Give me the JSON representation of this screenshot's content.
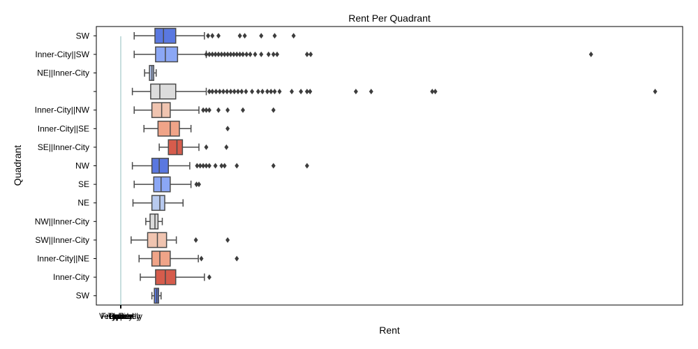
{
  "chart_data": {
    "type": "box",
    "orientation": "horizontal",
    "title": "Rent Per Quadrant",
    "xlabel": "Rent",
    "ylabel": "Quadrant",
    "grid": false,
    "legend": "none",
    "xlim": [
      -400,
      9200
    ],
    "x_tick_positions": [
      0
    ],
    "x_tick_labels_overlapping": [
      "Lower",
      "Typical",
      "Upper",
      "Frequently",
      "Rarely",
      "Very Rarely",
      "Outlier"
    ],
    "x_tick_label_note": "several words drawn on top of one another",
    "categories": [
      "SW",
      "Inner-City||SW",
      "NE||Inner-City",
      "",
      "Inner-City||NW",
      "Inner-City||SE",
      "SE||Inner-City",
      "NW",
      "SE",
      "NE",
      "NW||Inner-City",
      "SW||Inner-City",
      "Inner-City||NE",
      "Inner-City",
      "SW"
    ],
    "series": [
      {
        "whisker_low": 220,
        "q1": 560,
        "median": 700,
        "q3": 900,
        "whisker_high": 1370,
        "fliers": [
          1430,
          1500,
          1600,
          1950,
          2030,
          2300,
          2520,
          2830
        ],
        "color": "#5a78e0"
      },
      {
        "whisker_low": 220,
        "q1": 570,
        "median": 730,
        "q3": 930,
        "whisker_high": 1400,
        "fliers": [
          1400,
          1450,
          1500,
          1550,
          1600,
          1650,
          1700,
          1750,
          1800,
          1850,
          1900,
          1950,
          2000,
          2060,
          2120,
          2200,
          2300,
          2420,
          2500,
          2560,
          3050,
          3110,
          7700
        ],
        "color": "#8ba7f5"
      },
      {
        "whisker_low": 390,
        "q1": 470,
        "median": 510,
        "q3": 540,
        "whisker_high": 580,
        "fliers": [],
        "color": "#b2c6f0"
      },
      {
        "whisker_low": 190,
        "q1": 490,
        "median": 640,
        "q3": 900,
        "whisker_high": 1400,
        "fliers": [
          1450,
          1500,
          1560,
          1620,
          1680,
          1740,
          1800,
          1860,
          1920,
          1980,
          2050,
          2150,
          2250,
          2320,
          2400,
          2460,
          2520,
          2600,
          2800,
          2950,
          3050,
          3100,
          3850,
          4100,
          5100,
          5150,
          8750
        ],
        "color": "#dcdcdc"
      },
      {
        "whisker_low": 220,
        "q1": 510,
        "median": 670,
        "q3": 810,
        "whisker_high": 1280,
        "fliers": [
          1350,
          1400,
          1450,
          1600,
          1750,
          2000,
          2500
        ],
        "color": "#f0c4b0"
      },
      {
        "whisker_low": 380,
        "q1": 610,
        "median": 810,
        "q3": 960,
        "whisker_high": 1150,
        "fliers": [
          1750
        ],
        "color": "#f0a488"
      },
      {
        "whisker_low": 630,
        "q1": 780,
        "median": 920,
        "q3": 1010,
        "whisker_high": 1280,
        "fliers": [
          1400,
          1730
        ],
        "color": "#d65c4c"
      },
      {
        "whisker_low": 190,
        "q1": 510,
        "median": 630,
        "q3": 780,
        "whisker_high": 1130,
        "fliers": [
          1250,
          1300,
          1350,
          1400,
          1450,
          1550,
          1650,
          1700,
          1900,
          2500,
          3050
        ],
        "color": "#5a78e0"
      },
      {
        "whisker_low": 220,
        "q1": 540,
        "median": 660,
        "q3": 810,
        "whisker_high": 1150,
        "fliers": [
          1240,
          1280
        ],
        "color": "#8ba7f5"
      },
      {
        "whisker_low": 200,
        "q1": 510,
        "median": 640,
        "q3": 720,
        "whisker_high": 1020,
        "fliers": [],
        "color": "#b8caef"
      },
      {
        "whisker_low": 410,
        "q1": 480,
        "median": 560,
        "q3": 610,
        "whisker_high": 680,
        "fliers": [],
        "color": "#dcdcdc"
      },
      {
        "whisker_low": 170,
        "q1": 440,
        "median": 600,
        "q3": 750,
        "whisker_high": 910,
        "fliers": [
          1230,
          1750
        ],
        "color": "#f0c4b0"
      },
      {
        "whisker_low": 300,
        "q1": 510,
        "median": 640,
        "q3": 810,
        "whisker_high": 1270,
        "fliers": [
          1320,
          1900
        ],
        "color": "#f0a488"
      },
      {
        "whisker_low": 320,
        "q1": 570,
        "median": 730,
        "q3": 900,
        "whisker_high": 1370,
        "fliers": [
          1450
        ],
        "color": "#d65c4c"
      },
      {
        "whisker_low": 510,
        "q1": 550,
        "median": 590,
        "q3": 620,
        "whisker_high": 660,
        "fliers": [],
        "color": "#5a78e0"
      }
    ],
    "reference_line": {
      "x": 0,
      "color": "#8fbcbc"
    }
  }
}
